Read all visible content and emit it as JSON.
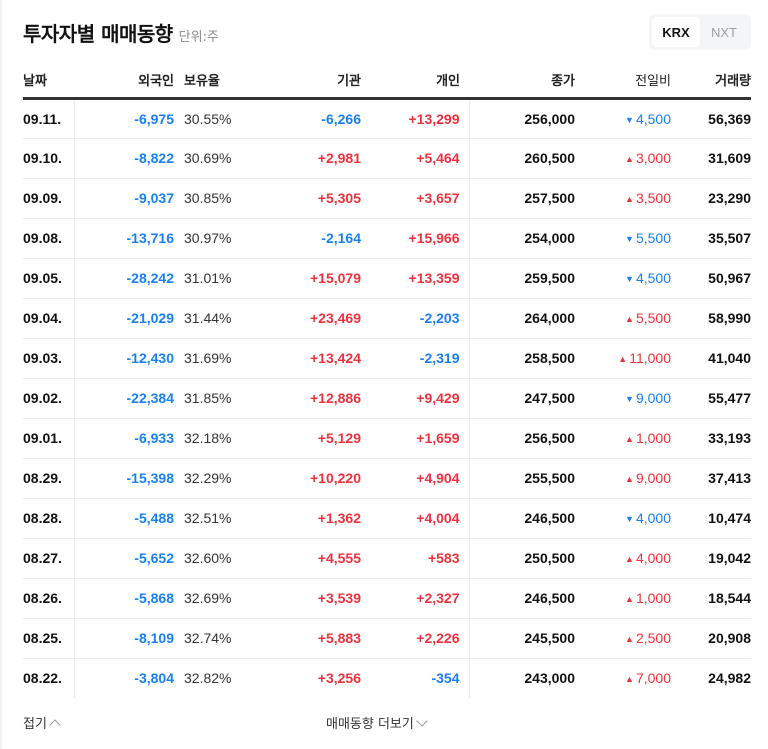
{
  "header": {
    "title": "투자자별 매매동향",
    "unit": "단위:주"
  },
  "market_toggle": {
    "options": [
      "KRX",
      "NXT"
    ],
    "selected": "KRX"
  },
  "colors": {
    "up": "#f0313c",
    "down": "#1a7ff0",
    "text": "#111111"
  },
  "table": {
    "columns": [
      "날짜",
      "외국인",
      "보유율",
      "기관",
      "개인",
      "종가",
      "전일비",
      "거래량"
    ],
    "rows": [
      {
        "date": "09.11.",
        "foreign": "-6,975",
        "holding": "30.55%",
        "institution": "-6,266",
        "individual": "+13,299",
        "close": "256,000",
        "change_dir": "down",
        "change": "4,500",
        "volume": "56,369"
      },
      {
        "date": "09.10.",
        "foreign": "-8,822",
        "holding": "30.69%",
        "institution": "+2,981",
        "individual": "+5,464",
        "close": "260,500",
        "change_dir": "up",
        "change": "3,000",
        "volume": "31,609"
      },
      {
        "date": "09.09.",
        "foreign": "-9,037",
        "holding": "30.85%",
        "institution": "+5,305",
        "individual": "+3,657",
        "close": "257,500",
        "change_dir": "up",
        "change": "3,500",
        "volume": "23,290"
      },
      {
        "date": "09.08.",
        "foreign": "-13,716",
        "holding": "30.97%",
        "institution": "-2,164",
        "individual": "+15,966",
        "close": "254,000",
        "change_dir": "down",
        "change": "5,500",
        "volume": "35,507"
      },
      {
        "date": "09.05.",
        "foreign": "-28,242",
        "holding": "31.01%",
        "institution": "+15,079",
        "individual": "+13,359",
        "close": "259,500",
        "change_dir": "down",
        "change": "4,500",
        "volume": "50,967"
      },
      {
        "date": "09.04.",
        "foreign": "-21,029",
        "holding": "31.44%",
        "institution": "+23,469",
        "individual": "-2,203",
        "close": "264,000",
        "change_dir": "up",
        "change": "5,500",
        "volume": "58,990"
      },
      {
        "date": "09.03.",
        "foreign": "-12,430",
        "holding": "31.69%",
        "institution": "+13,424",
        "individual": "-2,319",
        "close": "258,500",
        "change_dir": "up",
        "change": "11,000",
        "volume": "41,040"
      },
      {
        "date": "09.02.",
        "foreign": "-22,384",
        "holding": "31.85%",
        "institution": "+12,886",
        "individual": "+9,429",
        "close": "247,500",
        "change_dir": "down",
        "change": "9,000",
        "volume": "55,477"
      },
      {
        "date": "09.01.",
        "foreign": "-6,933",
        "holding": "32.18%",
        "institution": "+5,129",
        "individual": "+1,659",
        "close": "256,500",
        "change_dir": "up",
        "change": "1,000",
        "volume": "33,193"
      },
      {
        "date": "08.29.",
        "foreign": "-15,398",
        "holding": "32.29%",
        "institution": "+10,220",
        "individual": "+4,904",
        "close": "255,500",
        "change_dir": "up",
        "change": "9,000",
        "volume": "37,413"
      },
      {
        "date": "08.28.",
        "foreign": "-5,488",
        "holding": "32.51%",
        "institution": "+1,362",
        "individual": "+4,004",
        "close": "246,500",
        "change_dir": "down",
        "change": "4,000",
        "volume": "10,474"
      },
      {
        "date": "08.27.",
        "foreign": "-5,652",
        "holding": "32.60%",
        "institution": "+4,555",
        "individual": "+583",
        "close": "250,500",
        "change_dir": "up",
        "change": "4,000",
        "volume": "19,042"
      },
      {
        "date": "08.26.",
        "foreign": "-5,868",
        "holding": "32.69%",
        "institution": "+3,539",
        "individual": "+2,327",
        "close": "246,500",
        "change_dir": "up",
        "change": "1,000",
        "volume": "18,544"
      },
      {
        "date": "08.25.",
        "foreign": "-8,109",
        "holding": "32.74%",
        "institution": "+5,883",
        "individual": "+2,226",
        "close": "245,500",
        "change_dir": "up",
        "change": "2,500",
        "volume": "20,908"
      },
      {
        "date": "08.22.",
        "foreign": "-3,804",
        "holding": "32.82%",
        "institution": "+3,256",
        "individual": "-354",
        "close": "243,000",
        "change_dir": "up",
        "change": "7,000",
        "volume": "24,982"
      }
    ]
  },
  "footer": {
    "fold_label": "접기",
    "more_label": "매매동향 더보기"
  },
  "icons": {
    "up_triangle": "▲",
    "down_triangle": "▼",
    "fold": "chevron-up-icon",
    "more": "chevron-down-icon"
  }
}
